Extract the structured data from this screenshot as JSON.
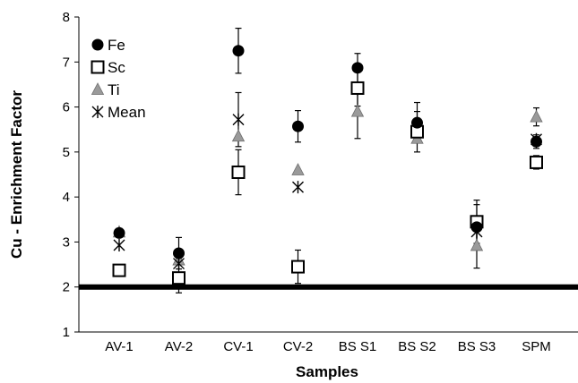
{
  "chart_data": {
    "type": "scatter",
    "categories": [
      "AV-1",
      "AV-2",
      "CV-1",
      "CV-2",
      "BS S1",
      "BS S2",
      "BS S3",
      "SPM"
    ],
    "xlabel": "Samples",
    "ylabel": "Cu - Enrichment Factor",
    "ylim": [
      1,
      8
    ],
    "yticks": [
      1,
      2,
      3,
      4,
      5,
      6,
      7,
      8
    ],
    "grid": false,
    "legend_position": "top-left",
    "reference_line": {
      "y": 2
    },
    "series": [
      {
        "name": "Fe",
        "marker": "filled-circle",
        "values": [
          3.2,
          2.75,
          7.25,
          5.57,
          6.87,
          5.65,
          3.33,
          5.23
        ],
        "errors": [
          null,
          0.35,
          0.5,
          0.35,
          0.32,
          0.45,
          0.5,
          0.15
        ]
      },
      {
        "name": "Sc",
        "marker": "open-square",
        "values": [
          2.37,
          2.2,
          4.55,
          2.45,
          6.42,
          5.45,
          3.45,
          4.77
        ],
        "errors": [
          null,
          0.33,
          0.5,
          0.37,
          0.4,
          0.45,
          0.48,
          0.15
        ]
      },
      {
        "name": "Ti",
        "marker": "gray-triangle",
        "values": [
          3.22,
          2.6,
          5.35,
          4.6,
          5.9,
          5.3,
          2.92,
          5.78
        ],
        "errors": [
          null,
          null,
          null,
          null,
          0.6,
          null,
          0.5,
          0.2
        ]
      },
      {
        "name": "Mean",
        "marker": "asterisk",
        "values": [
          2.93,
          2.52,
          5.72,
          4.22,
          6.4,
          5.47,
          3.23,
          5.28
        ],
        "errors": [
          null,
          null,
          0.6,
          null,
          null,
          null,
          null,
          null
        ]
      }
    ]
  }
}
